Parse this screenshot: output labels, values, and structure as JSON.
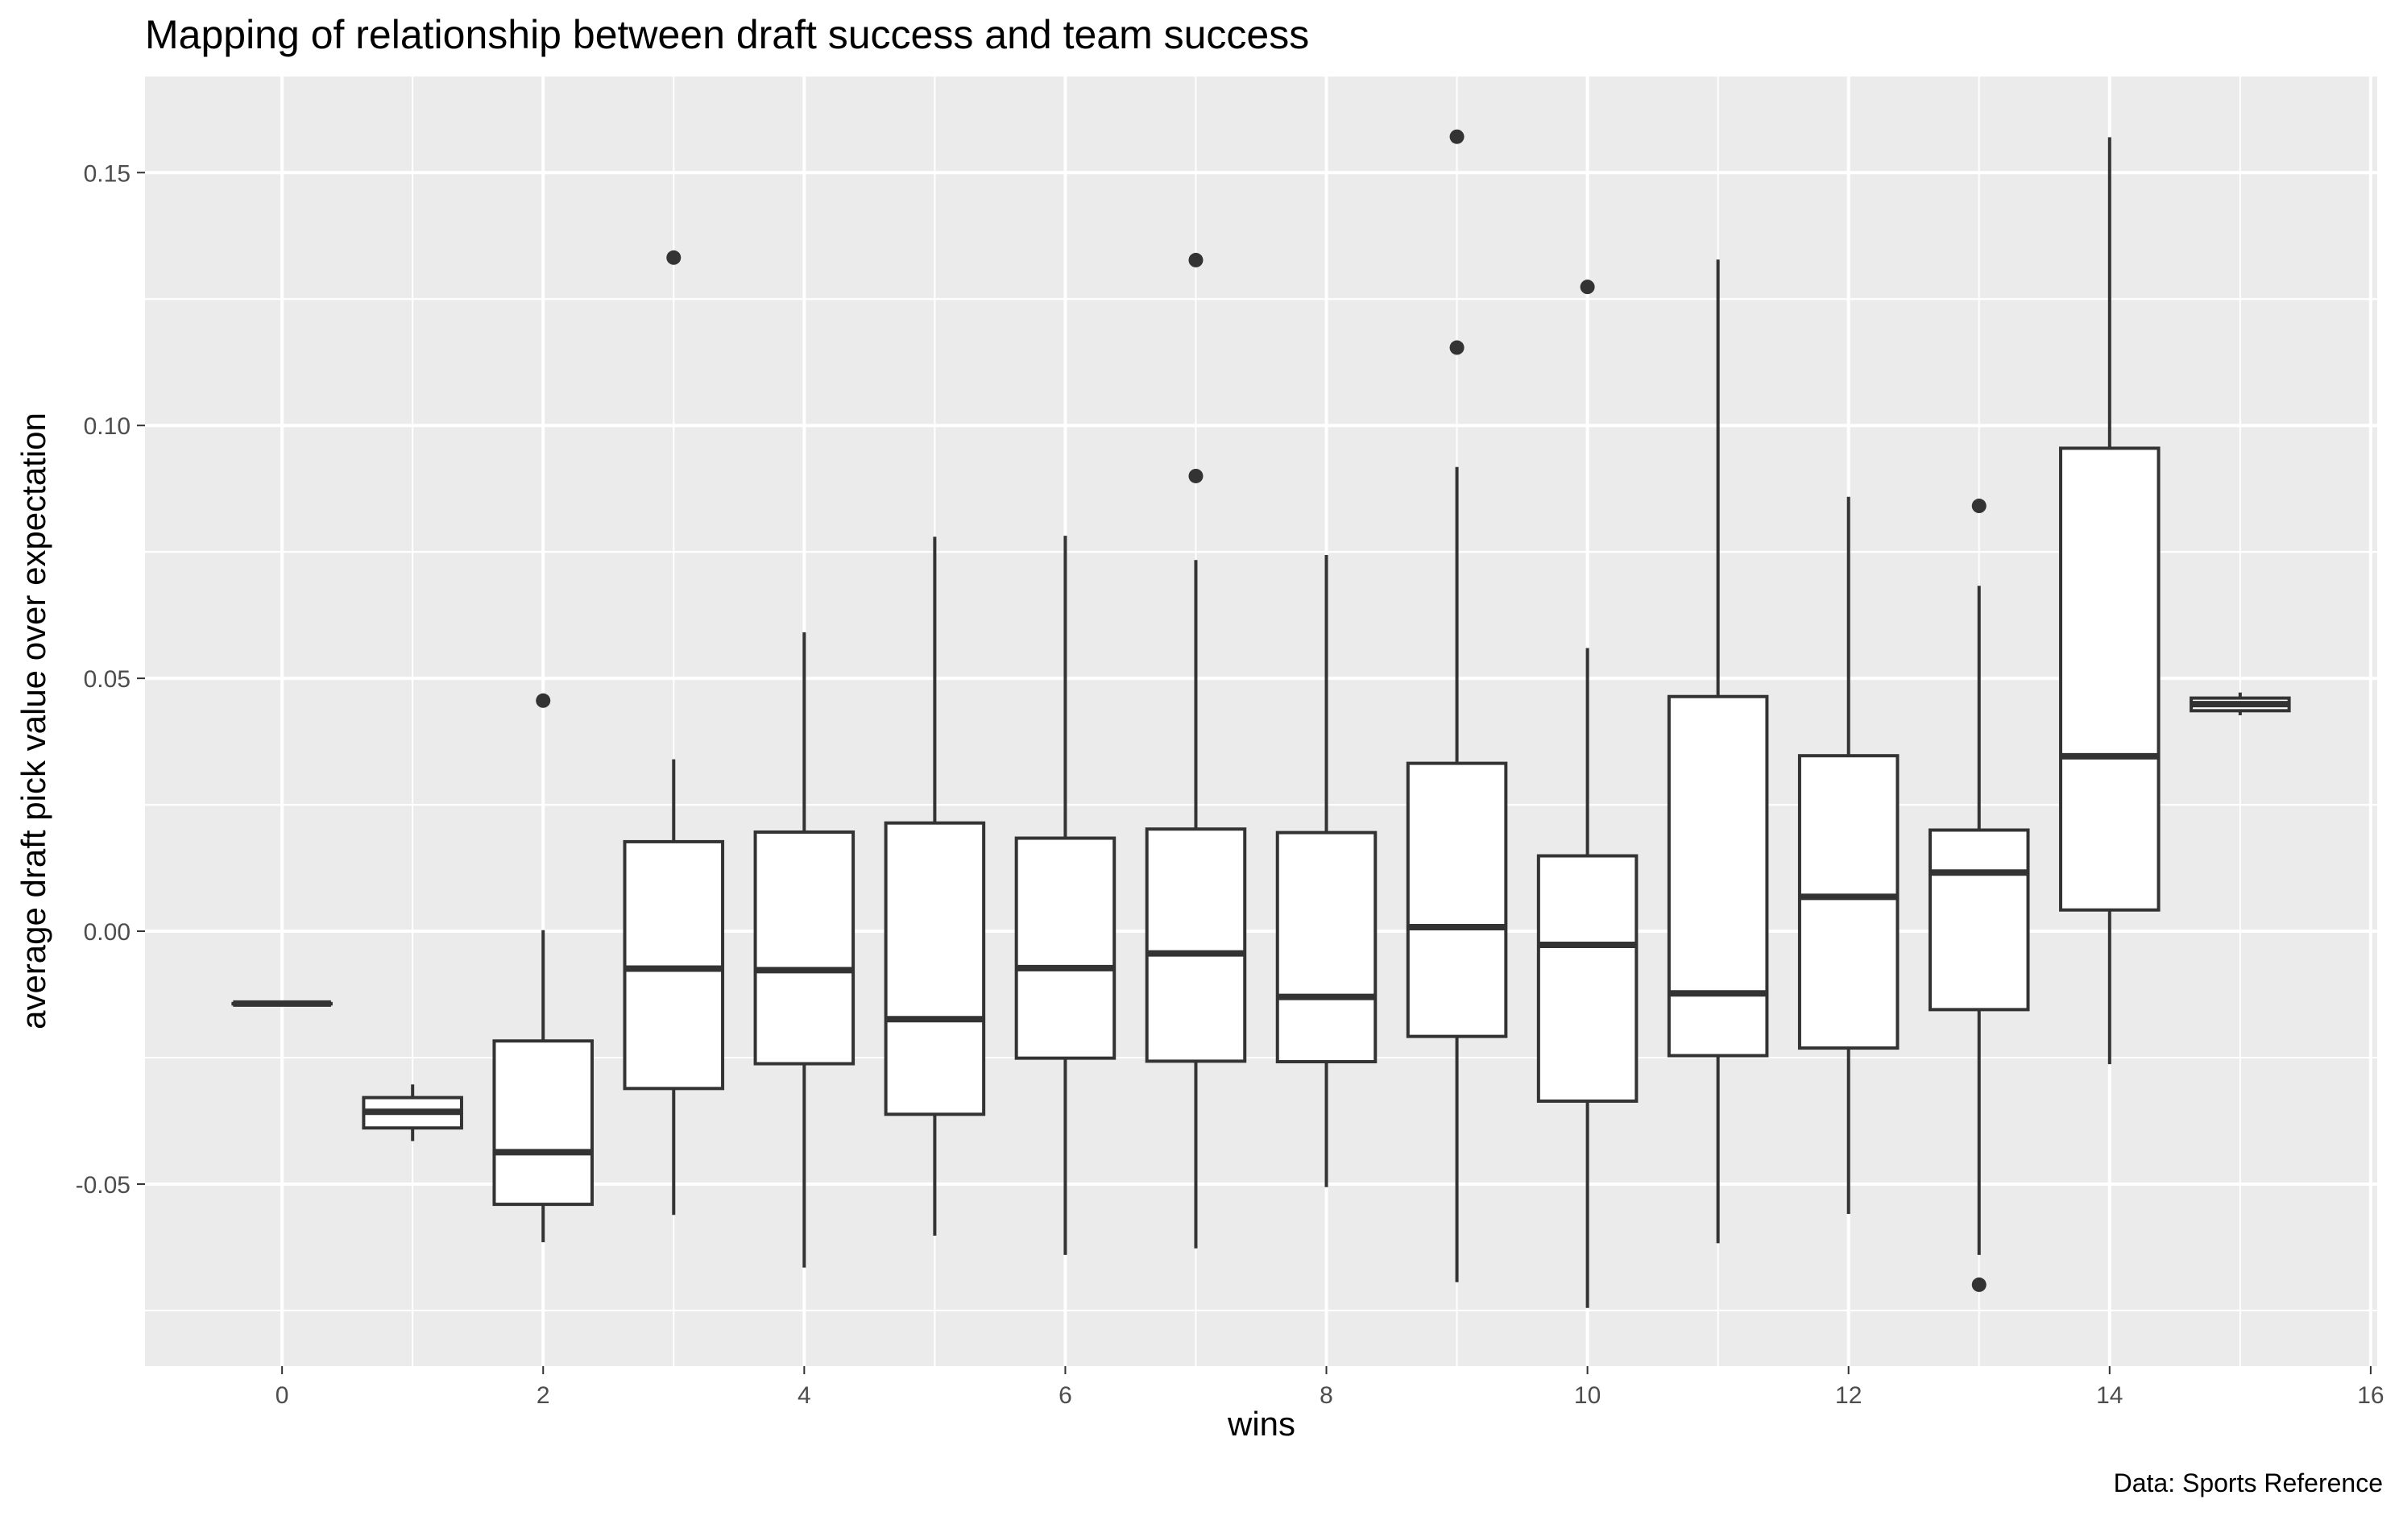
{
  "chart_data": {
    "type": "boxplot",
    "title": "Mapping of relationship between draft success and team success",
    "xlabel": "wins",
    "ylabel": "average draft pick value over expectation",
    "caption": "Data: Sports Reference",
    "xlim": [
      -1.05,
      16.05
    ],
    "ylim": [
      -0.086,
      0.169
    ],
    "x_ticks": [
      0,
      2,
      4,
      6,
      8,
      10,
      12,
      14,
      16
    ],
    "y_ticks": [
      -0.05,
      0.0,
      0.05,
      0.1,
      0.15
    ],
    "y_tick_labels": [
      "-0.05",
      "0.00",
      "0.05",
      "0.10",
      "0.15"
    ],
    "grid": true,
    "box_width": 0.75,
    "colors": {
      "panel": "#ebebeb",
      "grid": "#ffffff",
      "box_fill": "#ffffff",
      "box_line": "#333333",
      "tick_text": "#4d4d4d"
    },
    "boxes": [
      {
        "x": 0,
        "lower": -0.0143,
        "q1": -0.0143,
        "median": -0.0143,
        "q3": -0.0143,
        "upper": -0.0143,
        "outliers": []
      },
      {
        "x": 1,
        "lower": -0.0415,
        "q1": -0.0389,
        "median": -0.0357,
        "q3": -0.0329,
        "upper": -0.0303,
        "outliers": []
      },
      {
        "x": 2,
        "lower": -0.0615,
        "q1": -0.054,
        "median": -0.0437,
        "q3": -0.0217,
        "upper": 0.0002,
        "outliers": [
          0.0456
        ]
      },
      {
        "x": 3,
        "lower": -0.0561,
        "q1": -0.0311,
        "median": -0.0074,
        "q3": 0.0177,
        "upper": 0.034,
        "outliers": [
          0.1332
        ]
      },
      {
        "x": 4,
        "lower": -0.0665,
        "q1": -0.0262,
        "median": -0.0077,
        "q3": 0.0196,
        "upper": 0.0591,
        "outliers": []
      },
      {
        "x": 5,
        "lower": -0.0602,
        "q1": -0.0362,
        "median": -0.0174,
        "q3": 0.0214,
        "upper": 0.078,
        "outliers": []
      },
      {
        "x": 6,
        "lower": -0.064,
        "q1": -0.0251,
        "median": -0.0073,
        "q3": 0.0184,
        "upper": 0.0782,
        "outliers": []
      },
      {
        "x": 7,
        "lower": -0.0627,
        "q1": -0.0257,
        "median": -0.0044,
        "q3": 0.0202,
        "upper": 0.0734,
        "outliers": [
          0.1327,
          0.09
        ]
      },
      {
        "x": 8,
        "lower": -0.0506,
        "q1": -0.0258,
        "median": -0.013,
        "q3": 0.0195,
        "upper": 0.0744,
        "outliers": []
      },
      {
        "x": 9,
        "lower": -0.0694,
        "q1": -0.0208,
        "median": 0.0008,
        "q3": 0.0332,
        "upper": 0.0918,
        "outliers": [
          0.1571,
          0.1154
        ]
      },
      {
        "x": 10,
        "lower": -0.0745,
        "q1": -0.0336,
        "median": -0.0027,
        "q3": 0.0149,
        "upper": 0.056,
        "outliers": [
          0.1274
        ]
      },
      {
        "x": 11,
        "lower": -0.0617,
        "q1": -0.0246,
        "median": -0.0123,
        "q3": 0.0464,
        "upper": 0.1328,
        "outliers": []
      },
      {
        "x": 12,
        "lower": -0.0559,
        "q1": -0.0231,
        "median": 0.0068,
        "q3": 0.0347,
        "upper": 0.0859,
        "outliers": []
      },
      {
        "x": 13,
        "lower": -0.064,
        "q1": -0.0155,
        "median": 0.0116,
        "q3": 0.02,
        "upper": 0.0683,
        "outliers": [
          0.0841,
          -0.0699
        ]
      },
      {
        "x": 14,
        "lower": -0.0263,
        "q1": 0.0042,
        "median": 0.0346,
        "q3": 0.0955,
        "upper": 0.157,
        "outliers": []
      },
      {
        "x": 15,
        "lower": 0.0427,
        "q1": 0.0436,
        "median": 0.0449,
        "q3": 0.0461,
        "upper": 0.0472,
        "outliers": []
      }
    ]
  }
}
